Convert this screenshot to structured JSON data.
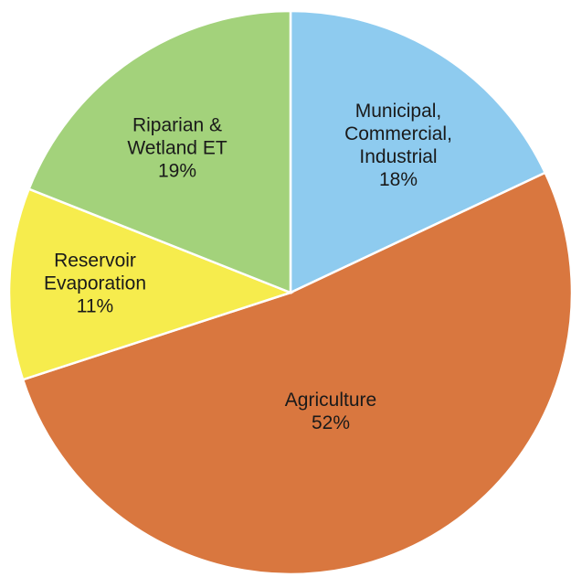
{
  "chart_data": {
    "type": "pie",
    "title": "",
    "slices": [
      {
        "label": [
          "Municipal,",
          "Commercial,",
          "Industrial"
        ],
        "percent": "18%",
        "value": 18,
        "color": "#8ecbef"
      },
      {
        "label": [
          "Agriculture"
        ],
        "percent": "52%",
        "value": 52,
        "color": "#d9773f"
      },
      {
        "label": [
          "Reservoir",
          "Evaporation"
        ],
        "percent": "11%",
        "value": 11,
        "color": "#f6ec4d"
      },
      {
        "label": [
          "Riparian &",
          "Wetland ET"
        ],
        "percent": "19%",
        "value": 19,
        "color": "#a3d27b"
      }
    ],
    "start_angle_deg": 0,
    "direction": "clockwise",
    "legend": "none"
  }
}
